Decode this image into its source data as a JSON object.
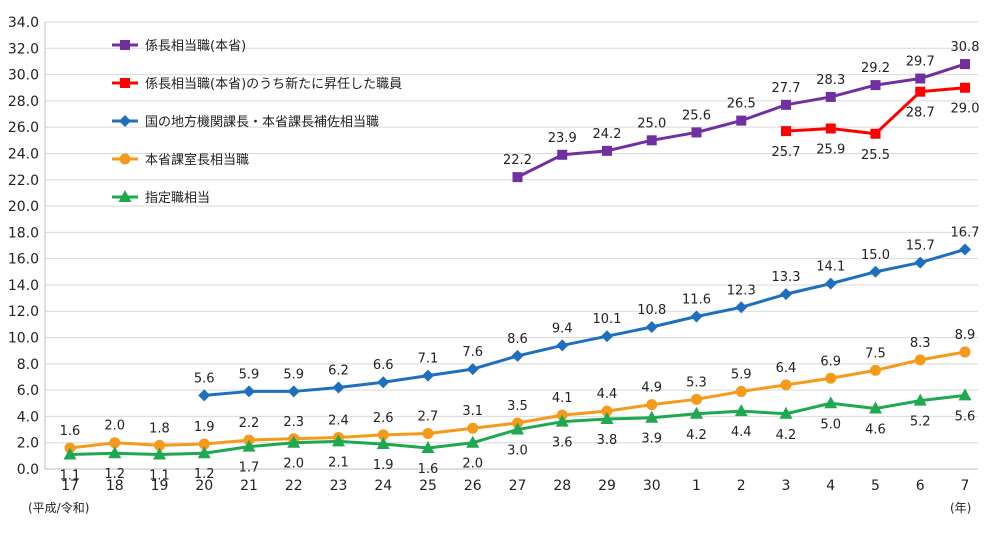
{
  "chart_data": {
    "type": "line",
    "title": "",
    "xlabel_left": "(平成/令和)",
    "xlabel_right": "(年)",
    "ylim": [
      0,
      34
    ],
    "y_ticks": [
      "0.0",
      "2.0",
      "4.0",
      "6.0",
      "8.0",
      "10.0",
      "12.0",
      "14.0",
      "16.0",
      "18.0",
      "20.0",
      "22.0",
      "24.0",
      "26.0",
      "28.0",
      "30.0",
      "32.0",
      "34.0"
    ],
    "categories": [
      "17",
      "18",
      "19",
      "20",
      "21",
      "22",
      "23",
      "24",
      "25",
      "26",
      "27",
      "28",
      "29",
      "30",
      "1",
      "2",
      "3",
      "4",
      "5",
      "6",
      "7"
    ],
    "series": [
      {
        "name": "係長相当職(本省)",
        "color": "#7030A0",
        "marker": "square",
        "label_pos": "above",
        "values": [
          null,
          null,
          null,
          null,
          null,
          null,
          null,
          null,
          null,
          null,
          22.2,
          23.9,
          24.2,
          25.0,
          25.6,
          26.5,
          27.7,
          28.3,
          29.2,
          29.7,
          30.8
        ],
        "labels": [
          null,
          null,
          null,
          null,
          null,
          null,
          null,
          null,
          null,
          null,
          "22.2",
          "23.9",
          "24.2",
          "25.0",
          "25.6",
          "26.5",
          "27.7",
          "28.3",
          "29.2",
          "29.7",
          "30.8"
        ]
      },
      {
        "name": "係長相当職(本省)のうち新たに昇任した職員",
        "color": "#FF0000",
        "marker": "square",
        "label_pos": "below",
        "values": [
          null,
          null,
          null,
          null,
          null,
          null,
          null,
          null,
          null,
          null,
          null,
          null,
          null,
          null,
          null,
          null,
          25.7,
          25.9,
          25.5,
          28.7,
          29.0
        ],
        "labels": [
          null,
          null,
          null,
          null,
          null,
          null,
          null,
          null,
          null,
          null,
          null,
          null,
          null,
          null,
          null,
          null,
          "25.7",
          "25.9",
          "25.5",
          "28.7",
          "29.0"
        ]
      },
      {
        "name": "国の地方機関課長・本省課長補佐相当職",
        "color": "#1F6FBF",
        "marker": "diamond",
        "label_pos": "above",
        "values": [
          null,
          null,
          null,
          5.6,
          5.9,
          5.9,
          6.2,
          6.6,
          7.1,
          7.6,
          8.6,
          9.4,
          10.1,
          10.8,
          11.6,
          12.3,
          13.3,
          14.1,
          15.0,
          15.7,
          16.7
        ],
        "labels": [
          null,
          null,
          null,
          "5.6",
          "5.9",
          "5.9",
          "6.2",
          "6.6",
          "7.1",
          "7.6",
          "8.6",
          "9.4",
          "10.1",
          "10.8",
          "11.6",
          "12.3",
          "13.3",
          "14.1",
          "15.0",
          "15.7",
          "16.7"
        ]
      },
      {
        "name": "本省課室長相当職",
        "color": "#F59A1B",
        "marker": "circle",
        "label_pos": "above",
        "values": [
          1.6,
          2.0,
          1.8,
          1.9,
          2.2,
          2.3,
          2.4,
          2.6,
          2.7,
          3.1,
          3.5,
          4.1,
          4.4,
          4.9,
          5.3,
          5.9,
          6.4,
          6.9,
          7.5,
          8.3,
          8.9
        ],
        "labels": [
          "1.6",
          "2.0",
          "1.8",
          "1.9",
          "2.2",
          "2.3",
          "2.4",
          "2.6",
          "2.7",
          "3.1",
          "3.5",
          "4.1",
          "4.4",
          "4.9",
          "5.3",
          "5.9",
          "6.4",
          "6.9",
          "7.5",
          "8.3",
          "8.9"
        ]
      },
      {
        "name": "指定職相当",
        "color": "#1FA84F",
        "marker": "triangle",
        "label_pos": "below",
        "values": [
          1.1,
          1.2,
          1.1,
          1.2,
          1.7,
          2.0,
          2.1,
          1.9,
          1.6,
          2.0,
          3.0,
          3.6,
          3.8,
          3.9,
          4.2,
          4.4,
          4.2,
          5.0,
          4.6,
          5.2,
          5.6
        ],
        "labels": [
          "1.1",
          "1.2",
          "1.1",
          "1.2",
          "1.7",
          "2.0",
          "2.1",
          "1.9",
          "1.6",
          "2.0",
          "3.0",
          "3.6",
          "3.8",
          "3.9",
          "4.2",
          "4.4",
          "4.2",
          "5.0",
          "4.6",
          "5.2",
          "5.6"
        ]
      }
    ],
    "grid": "horizontal",
    "legend_position": "top-left"
  }
}
